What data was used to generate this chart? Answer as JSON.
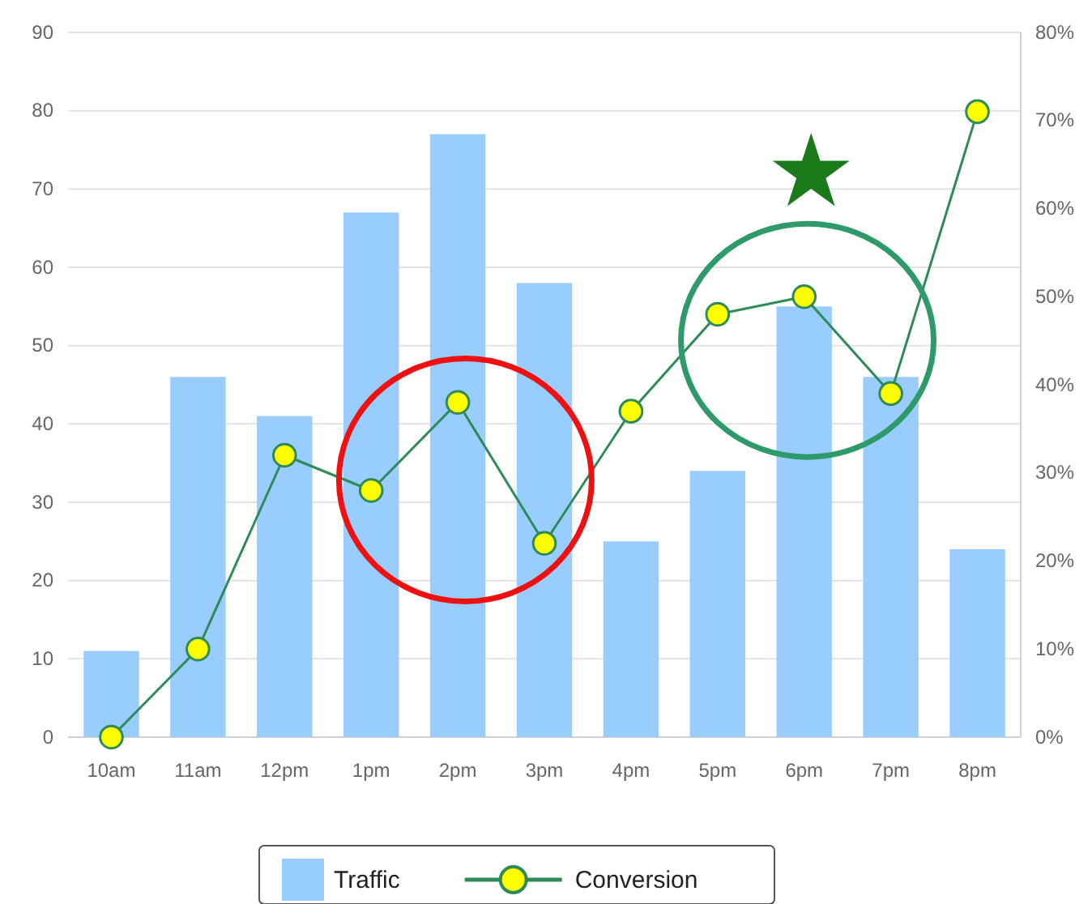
{
  "chart_data": {
    "type": "bar",
    "categories": [
      "10am",
      "11am",
      "12pm",
      "1pm",
      "2pm",
      "3pm",
      "4pm",
      "5pm",
      "6pm",
      "7pm",
      "8pm"
    ],
    "series": [
      {
        "name": "Traffic",
        "color": "#99ccff",
        "values": [
          11,
          46,
          41,
          67,
          77,
          58,
          25,
          34,
          55,
          46,
          24
        ]
      },
      {
        "name": "Conversion",
        "type": "line",
        "axis": "y2",
        "color": "#2e8b57",
        "values": [
          0,
          10,
          32,
          28,
          38,
          22,
          37,
          48,
          50,
          39,
          71
        ]
      }
    ],
    "ylim": [
      0,
      90
    ],
    "yticks": [
      0,
      10,
      20,
      30,
      40,
      50,
      60,
      70,
      80,
      90
    ],
    "y2lim": [
      0,
      80
    ],
    "y2ticks": [
      {
        "value": 0,
        "label": "0%"
      },
      {
        "value": 10,
        "label": "10%"
      },
      {
        "value": 20,
        "label": "20%"
      },
      {
        "value": 30,
        "label": "30%"
      },
      {
        "value": 40,
        "label": "40%"
      },
      {
        "value": 50,
        "label": "50%"
      },
      {
        "value": 60,
        "label": "60%"
      },
      {
        "value": 70,
        "label": "70%"
      },
      {
        "value": 80,
        "label": "80%"
      }
    ],
    "grid": "y",
    "legend": "bottom",
    "marker": "circle"
  }
}
